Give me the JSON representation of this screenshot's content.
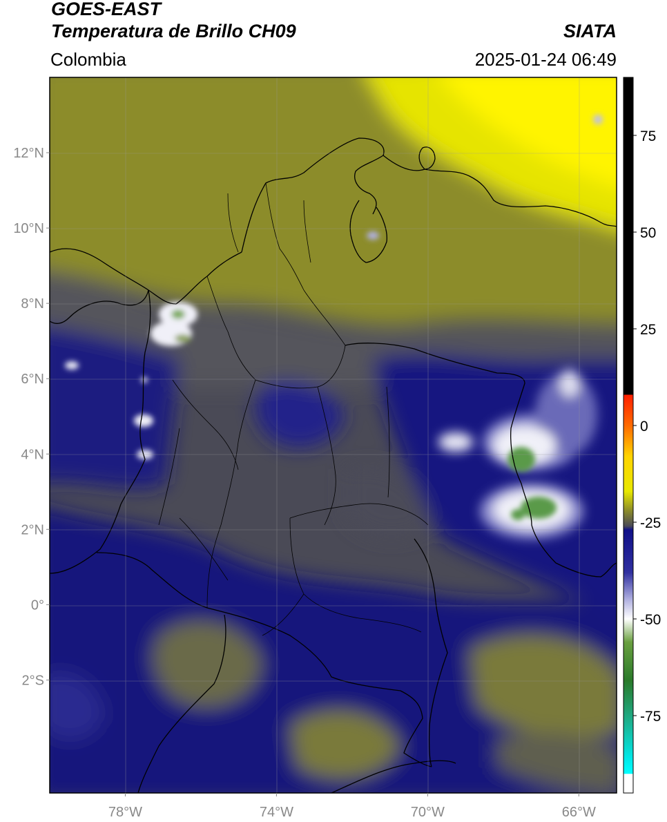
{
  "header": {
    "satellite": "GOES-EAST",
    "product": "Temperatura de Brillo CH09",
    "source": "SIATA",
    "region": "Colombia",
    "datetime": "2025-01-24 06:49"
  },
  "map": {
    "lon_range": [
      -80,
      -65
    ],
    "lat_range": [
      -5,
      14
    ],
    "lon_ticks": [
      {
        "value": -78,
        "label": "78°W"
      },
      {
        "value": -74,
        "label": "74°W"
      },
      {
        "value": -70,
        "label": "70°W"
      },
      {
        "value": -66,
        "label": "66°W"
      }
    ],
    "lat_ticks": [
      {
        "value": 12,
        "label": "12°N"
      },
      {
        "value": 10,
        "label": "10°N"
      },
      {
        "value": 8,
        "label": "8°N"
      },
      {
        "value": 6,
        "label": "6°N"
      },
      {
        "value": 4,
        "label": "4°N"
      },
      {
        "value": 2,
        "label": "2°N"
      },
      {
        "value": 0,
        "label": "0°"
      },
      {
        "value": -2,
        "label": "2°S"
      }
    ],
    "colors": {
      "land_yellow": "#f6ec00",
      "olive": "#8c8c2a",
      "gray": "#4a4a56",
      "navy": "#14147a",
      "white_cloud": "#eeeef8",
      "green": "#4d9a3a"
    }
  },
  "colorbar": {
    "range": [
      -95,
      90
    ],
    "ticks": [
      {
        "value": 75,
        "label": "75"
      },
      {
        "value": 50,
        "label": "50"
      },
      {
        "value": 25,
        "label": "25"
      },
      {
        "value": 0,
        "label": "0"
      },
      {
        "value": -25,
        "label": "-25"
      },
      {
        "value": -50,
        "label": "-50"
      },
      {
        "value": -75,
        "label": "-75"
      }
    ],
    "stops": [
      {
        "value": 90,
        "color": "#000000"
      },
      {
        "value": 8,
        "color": "#000000"
      },
      {
        "value": 7.9,
        "color": "#ff2000"
      },
      {
        "value": 0,
        "color": "#ff6a00"
      },
      {
        "value": -8,
        "color": "#ffd400"
      },
      {
        "value": -17,
        "color": "#e8e800"
      },
      {
        "value": -22,
        "color": "#8c8c2a"
      },
      {
        "value": -26,
        "color": "#4a4a56"
      },
      {
        "value": -27,
        "color": "#101088"
      },
      {
        "value": -38,
        "color": "#3030a0"
      },
      {
        "value": -45,
        "color": "#b0b0e0"
      },
      {
        "value": -50,
        "color": "#ffffff"
      },
      {
        "value": -56,
        "color": "#6aa040"
      },
      {
        "value": -66,
        "color": "#2a7a2a"
      },
      {
        "value": -75,
        "color": "#20a880"
      },
      {
        "value": -86,
        "color": "#00e8e8"
      },
      {
        "value": -90,
        "color": "#00ffff"
      },
      {
        "value": -90.1,
        "color": "#ffffff"
      },
      {
        "value": -95,
        "color": "#ffffff"
      }
    ]
  }
}
